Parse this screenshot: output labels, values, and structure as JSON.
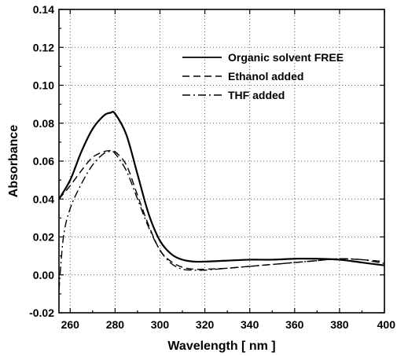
{
  "chart_data": {
    "type": "line",
    "xlabel": "Wavelength [ nm ]",
    "ylabel": "Absorbance",
    "xlim": [
      255,
      400
    ],
    "ylim": [
      -0.02,
      0.14
    ],
    "grid": true,
    "legend_position": "top-right",
    "x_ticks": [
      260,
      280,
      300,
      320,
      340,
      360,
      380,
      400
    ],
    "x_tick_labels": [
      "260",
      "280",
      "300",
      "320",
      "340",
      "360",
      "380",
      "400"
    ],
    "y_ticks": [
      -0.02,
      0.0,
      0.02,
      0.04,
      0.06,
      0.08,
      0.1,
      0.12,
      0.14
    ],
    "y_tick_labels": [
      "-0.02",
      "0.00",
      "0.02",
      "0.04",
      "0.06",
      "0.08",
      "0.10",
      "0.12",
      "0.14"
    ],
    "series": [
      {
        "name": "Organic solvent FREE",
        "style": "solid",
        "x": [
          255,
          260,
          265,
          270,
          275,
          278,
          280,
          285,
          290,
          295,
          300,
          305,
          310,
          315,
          320,
          330,
          340,
          350,
          360,
          370,
          380,
          390,
          400
        ],
        "y": [
          0.04,
          0.05,
          0.065,
          0.077,
          0.084,
          0.0855,
          0.085,
          0.074,
          0.053,
          0.032,
          0.018,
          0.011,
          0.008,
          0.007,
          0.007,
          0.0075,
          0.008,
          0.008,
          0.0085,
          0.0085,
          0.008,
          0.0065,
          0.005
        ]
      },
      {
        "name": "Ethanol added",
        "style": "dashed",
        "x": [
          255,
          260,
          265,
          270,
          275,
          278,
          280,
          285,
          290,
          295,
          300,
          305,
          310,
          315,
          320,
          330,
          340,
          350,
          360,
          370,
          380,
          390,
          400
        ],
        "y": [
          0.04,
          0.047,
          0.055,
          0.062,
          0.065,
          0.0655,
          0.065,
          0.058,
          0.042,
          0.026,
          0.013,
          0.007,
          0.004,
          0.003,
          0.003,
          0.0035,
          0.0045,
          0.0055,
          0.0065,
          0.0075,
          0.0085,
          0.008,
          0.007
        ]
      },
      {
        "name": "THF added",
        "style": "dashdot",
        "x": [
          255,
          257,
          260,
          265,
          270,
          275,
          278,
          280,
          285,
          290,
          295,
          300,
          305,
          310,
          315,
          320,
          330,
          340,
          350,
          360,
          370,
          380,
          390,
          400
        ],
        "y": [
          -0.008,
          0.02,
          0.035,
          0.048,
          0.058,
          0.064,
          0.065,
          0.064,
          0.055,
          0.04,
          0.025,
          0.013,
          0.006,
          0.003,
          0.0025,
          0.0025,
          0.0035,
          0.0045,
          0.0055,
          0.0065,
          0.0075,
          0.0085,
          0.008,
          0.006
        ]
      }
    ]
  }
}
